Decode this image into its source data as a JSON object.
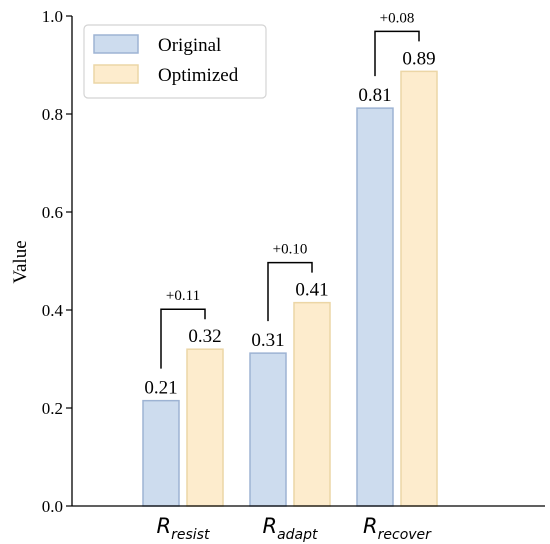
{
  "chart_data": {
    "type": "bar",
    "title": "",
    "xlabel": "",
    "ylabel": "Value",
    "ylim": [
      0.0,
      1.0
    ],
    "yticks": [
      "0.0",
      "0.2",
      "0.4",
      "0.6",
      "0.8",
      "1.0"
    ],
    "categories": [
      {
        "main": "R",
        "sub": "resist"
      },
      {
        "main": "R",
        "sub": "adapt"
      },
      {
        "main": "R",
        "sub": "recover"
      }
    ],
    "series": [
      {
        "name": "Original",
        "values": [
          0.215,
          0.312,
          0.812
        ],
        "labels": [
          "0.21",
          "0.31",
          "0.81"
        ],
        "fill": "#cddcee",
        "stroke": "#9db3d3"
      },
      {
        "name": "Optimized",
        "values": [
          0.32,
          0.415,
          0.887
        ],
        "labels": [
          "0.32",
          "0.41",
          "0.89"
        ],
        "fill": "#fdeccd",
        "stroke": "#ecd6a6"
      }
    ],
    "differences": [
      "+0.11",
      "+0.10",
      "+0.08"
    ],
    "legend": {
      "position": "top-left"
    },
    "grid": false
  }
}
